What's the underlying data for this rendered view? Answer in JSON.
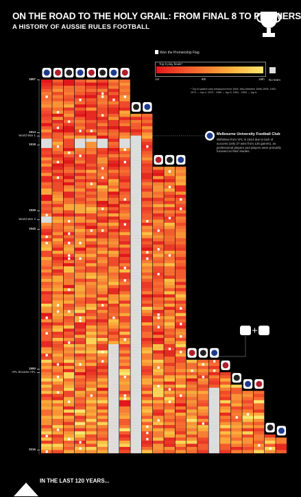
{
  "header": {
    "title": "ON THE ROAD TO THE HOLY GRAIL: FROM FINAL 8 TO PREMIERS",
    "subtitle": "A HISTORY OF AUSSIE RULES FOOTBALL"
  },
  "icons": {
    "trophy": "trophy-icon",
    "flag": "premiership-flag-icon",
    "logo": "club-logo-icon"
  },
  "legend": {
    "flag_label": "Won the Premiership Flag",
    "scale_label": "Top 8 play finals*",
    "ticks": [
      "1st",
      "8th",
      "18th"
    ],
    "no_team": "No team"
  },
  "footnote": "* Top 8 system was introduced from 1994. Also between 1896-1908. 1902-1971 → top 4, 1972 - 1990 → top 5, 1991 - 1993 → top 6.",
  "annotation": {
    "title": "Melbourne University Football Club",
    "body": "Withdrew from VFL in 1914 due to lack of success (only 27 wins from 126 games), as professional players and players were primarily focused on their studies."
  },
  "bottom_heading": "IN THE LAST 120 YEARS...",
  "colors": {
    "rank_best": "#fde66f",
    "rank_mid": "#f77a33",
    "rank_worst": "#e0181b",
    "no_team": "#dddddd"
  },
  "chart_data": {
    "type": "heatmap",
    "x_label": "",
    "y_label": "",
    "start_year": 1897,
    "end_year": 2016,
    "y_ticks": [
      {
        "label": "1897",
        "year": 1897
      },
      {
        "label": "1914",
        "year": 1914
      },
      {
        "label": "World War 1",
        "year": 1915
      },
      {
        "label": "1918",
        "year": 1918
      },
      {
        "label": "1939",
        "year": 1939
      },
      {
        "label": "World War 2",
        "year": 1942
      },
      {
        "label": "1945",
        "year": 1945
      },
      {
        "label": "1990",
        "year": 1990
      },
      {
        "label": "VFL became AFL",
        "year": 1991
      },
      {
        "label": "2016",
        "year": 2016
      }
    ],
    "teams": [
      {
        "join": 1897,
        "gaps": [
          [
            1916,
            1918
          ],
          [
            1941,
            1942
          ]
        ]
      },
      {
        "join": 1897,
        "gaps": []
      },
      {
        "join": 1897,
        "gaps": []
      },
      {
        "join": 1897,
        "gaps": [
          [
            1916,
            1918
          ]
        ]
      },
      {
        "join": 1897,
        "gaps": [
          [
            1916,
            1916
          ]
        ]
      },
      {
        "join": 1897,
        "gaps": [
          [
            1916,
            1918
          ]
        ]
      },
      {
        "join": 1897,
        "gaps": [
          [
            1982,
            2016
          ]
        ]
      },
      {
        "join": 1897,
        "gaps": [
          [
            1916,
            1918
          ]
        ]
      },
      {
        "join": 1908,
        "gaps": [
          [
            1915,
            2016
          ]
        ]
      },
      {
        "join": 1908,
        "gaps": []
      },
      {
        "join": 1925,
        "gaps": []
      },
      {
        "join": 1925,
        "gaps": []
      },
      {
        "join": 1925,
        "gaps": []
      },
      {
        "join": 1987,
        "gaps": []
      },
      {
        "join": 1987,
        "gaps": []
      },
      {
        "join": 1987,
        "gaps": [
          [
            1996,
            2016
          ]
        ]
      },
      {
        "join": 1991,
        "gaps": []
      },
      {
        "join": 1995,
        "gaps": []
      },
      {
        "join": 1997,
        "gaps": []
      },
      {
        "join": 1997,
        "gaps": []
      },
      {
        "join": 2011,
        "gaps": []
      },
      {
        "join": 2012,
        "gaps": []
      }
    ]
  }
}
